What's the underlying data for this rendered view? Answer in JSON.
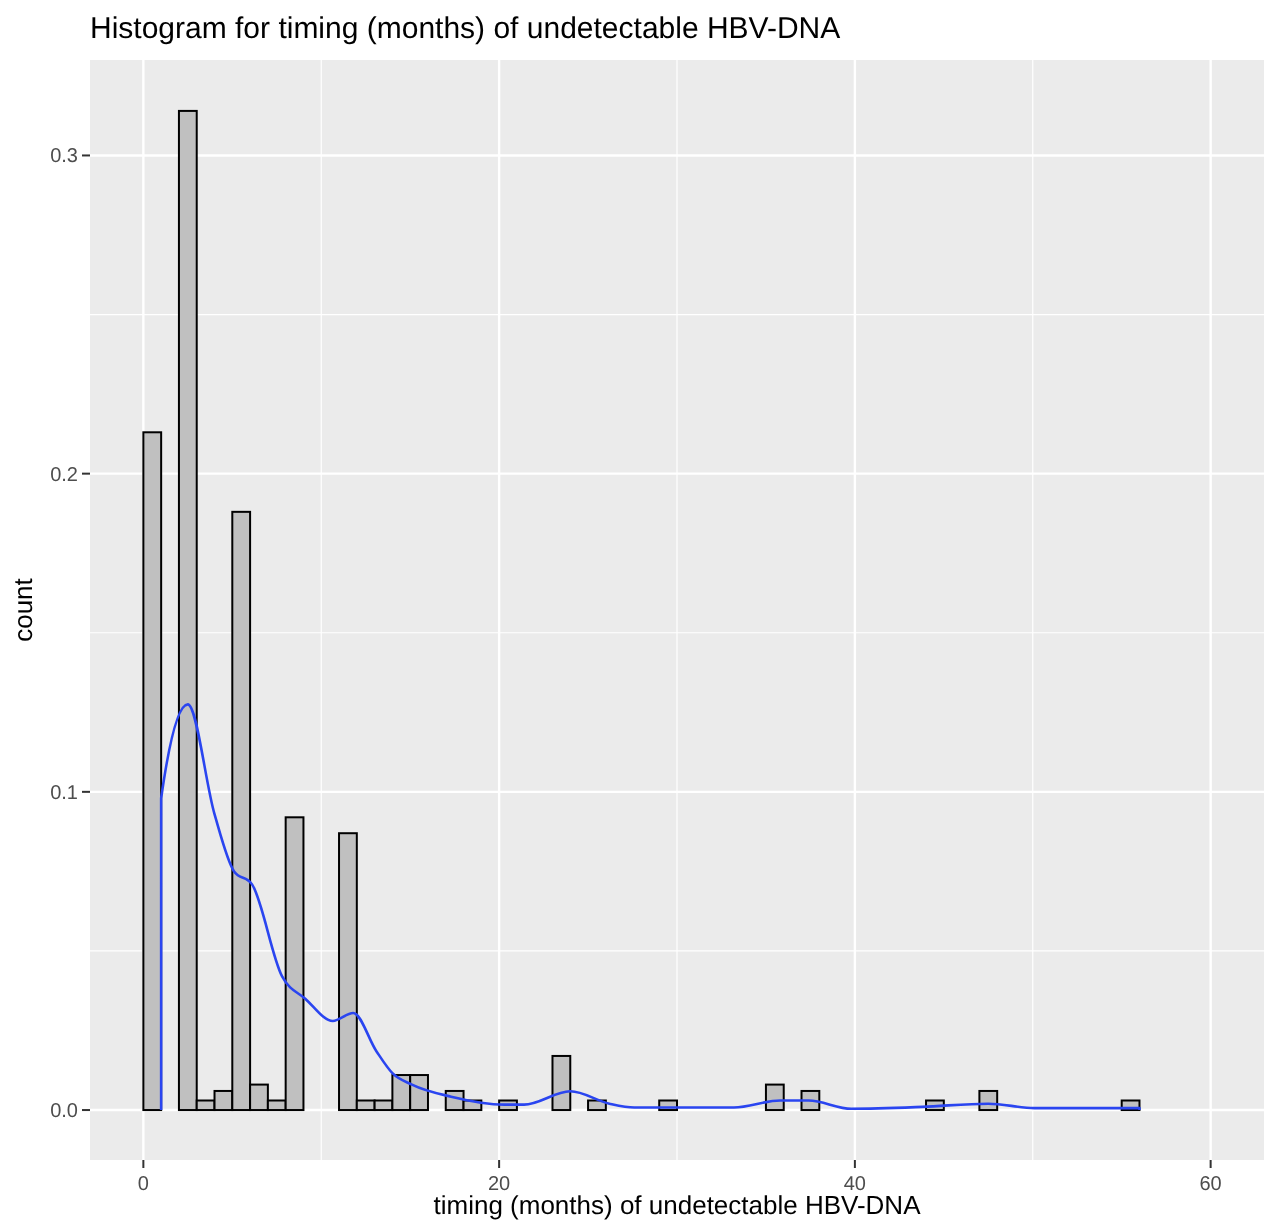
{
  "chart_data": {
    "type": "histogram",
    "title": "Histogram for timing (months) of undetectable HBV-DNA",
    "xlabel": "timing (months) of undetectable HBV-DNA",
    "ylabel": "count",
    "bins": [
      0,
      1,
      2,
      3,
      4,
      5,
      6,
      7,
      8,
      9,
      10,
      11,
      12,
      13,
      14,
      15,
      16,
      17,
      18,
      19,
      20,
      21,
      22,
      23,
      24,
      25,
      26,
      27,
      28,
      29,
      30,
      31,
      32,
      33,
      34,
      35,
      36,
      37,
      38,
      39,
      40,
      41,
      42,
      43,
      44,
      45,
      46,
      47,
      48,
      49,
      50,
      51,
      52,
      53,
      54,
      55,
      56,
      57,
      58,
      59,
      60
    ],
    "series": [
      {
        "color": "#c0c0c0",
        "values": [
          0.213,
          0,
          0.314,
          0.003,
          0.006,
          0.188,
          0.008,
          0.003,
          0.092,
          0,
          0,
          0.087,
          0.003,
          0.003,
          0.011,
          0.011,
          0,
          0.006,
          0.003,
          0,
          0.003,
          0,
          0,
          0.017,
          0,
          0.003,
          0,
          0,
          0,
          0.003,
          0,
          0,
          0,
          0,
          0,
          0.008,
          0,
          0.006,
          0,
          0,
          0,
          0,
          0,
          0,
          0.003,
          0,
          0,
          0.006,
          0,
          0,
          0,
          0,
          0,
          0,
          0,
          0.003,
          0,
          0,
          0,
          0
        ]
      },
      {
        "type": "line",
        "color": "#2a45f0",
        "x": [
          1,
          1,
          2.5,
          4,
          5.1,
          6.1,
          7.8,
          9.1,
          10.65,
          11.8,
          13.1,
          14,
          15.1,
          17.3,
          20.3,
          21.4,
          24,
          26.2,
          27.6,
          29.9,
          33.2,
          35.8,
          37.4,
          39.8,
          43.8,
          47.5,
          50.1,
          56,
          56
        ],
        "values": [
          0,
          0.098,
          0.1275,
          0.093,
          0.075,
          0.071,
          0.042,
          0.035,
          0.028,
          0.0305,
          0.0185,
          0.0116,
          0.008,
          0.0042,
          0.0017,
          0.0017,
          0.0059,
          0.002,
          0.0008,
          0.0008,
          0.0008,
          0.003,
          0.003,
          0.0004,
          0.001,
          0.002,
          0.0006,
          0.0006,
          0
        ]
      }
    ],
    "xlim": [
      -3,
      63
    ],
    "xticks": [
      0,
      20,
      40,
      60
    ],
    "ylim": [
      -0.0157,
      0.33
    ],
    "yticks": [
      {
        "value": 0,
        "label": "0.0"
      },
      {
        "value": 0.1,
        "label": "0.1"
      },
      {
        "value": 0.2,
        "label": "0.2"
      },
      {
        "value": 0.3,
        "label": "0.3"
      }
    ],
    "grid": true
  }
}
